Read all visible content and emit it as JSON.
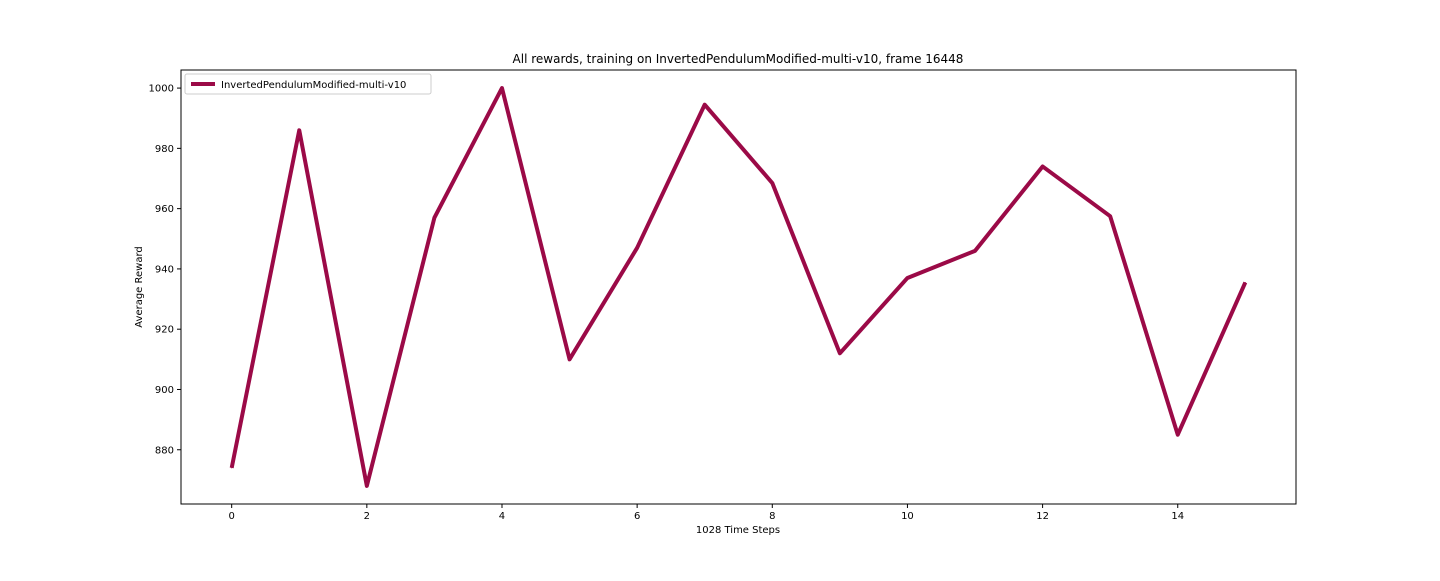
{
  "chart_data": {
    "type": "line",
    "title": "All rewards, training on InvertedPendulumModified-multi-v10, frame 16448",
    "xlabel": "1028 Time Steps",
    "ylabel": "Average Reward",
    "xlim": [
      -0.75,
      15.75
    ],
    "ylim": [
      862,
      1006
    ],
    "xticks": [
      0,
      2,
      4,
      6,
      8,
      10,
      12,
      14
    ],
    "yticks": [
      880,
      900,
      920,
      940,
      960,
      980,
      1000
    ],
    "grid": false,
    "legend_position": "upper-left",
    "series": [
      {
        "name": "InvertedPendulumModified-multi-v10",
        "color": "#9b0a47",
        "x": [
          0,
          1,
          2,
          3,
          4,
          5,
          6,
          7,
          8,
          9,
          10,
          11,
          12,
          13,
          14,
          15
        ],
        "y": [
          874,
          986,
          868,
          957,
          1000,
          910,
          947,
          994.5,
          968.5,
          912,
          937,
          946,
          974,
          957.5,
          885,
          935.5
        ]
      }
    ]
  }
}
